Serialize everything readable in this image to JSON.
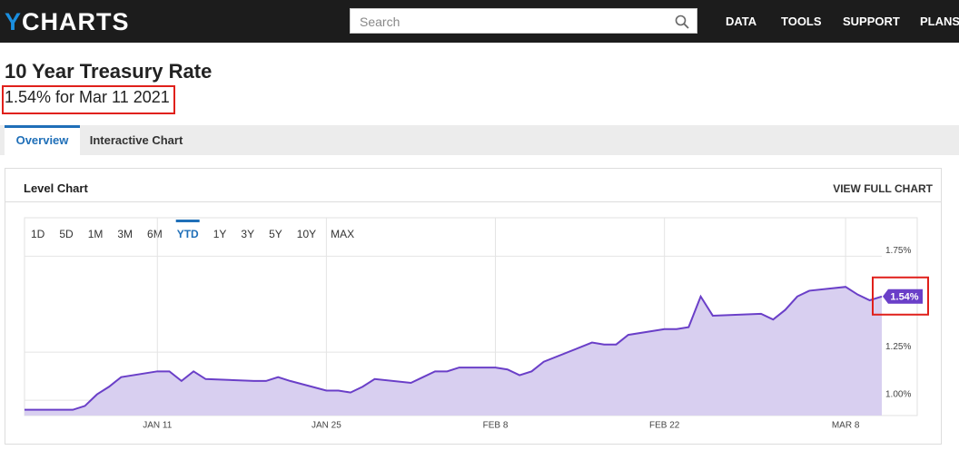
{
  "nav": {
    "logo_first": "Y",
    "logo_rest": "CHARTS",
    "search_placeholder": "Search",
    "links": [
      "DATA",
      "TOOLS",
      "SUPPORT",
      "PLANS"
    ]
  },
  "header": {
    "title": "10 Year Treasury Rate",
    "subtitle": "1.54% for Mar 11 2021"
  },
  "tabs": [
    "Overview",
    "Interactive Chart"
  ],
  "panel": {
    "title": "Level Chart",
    "link": "VIEW FULL CHART",
    "ranges": [
      "1D",
      "5D",
      "1M",
      "3M",
      "6M",
      "YTD",
      "1Y",
      "3Y",
      "5Y",
      "10Y",
      "MAX"
    ],
    "active_range": 5
  },
  "chart_data": {
    "type": "area",
    "x": [
      "Dec 31",
      "Jan 4",
      "Jan 5",
      "Jan 6",
      "Jan 7",
      "Jan 8",
      "Jan 11",
      "Jan 12",
      "Jan 13",
      "Jan 14",
      "Jan 15",
      "Jan 19",
      "Jan 20",
      "Jan 21",
      "Jan 22",
      "Jan 25",
      "Jan 26",
      "Jan 27",
      "Jan 28",
      "Jan 29",
      "Feb 1",
      "Feb 2",
      "Feb 3",
      "Feb 4",
      "Feb 5",
      "Feb 8",
      "Feb 9",
      "Feb 10",
      "Feb 11",
      "Feb 12",
      "Feb 16",
      "Feb 17",
      "Feb 18",
      "Feb 19",
      "Feb 22",
      "Feb 23",
      "Feb 24",
      "Feb 25",
      "Feb 26",
      "Mar 1",
      "Mar 2",
      "Mar 3",
      "Mar 4",
      "Mar 5",
      "Mar 8",
      "Mar 9",
      "Mar 10",
      "Mar 11"
    ],
    "values": [
      0.95,
      0.95,
      0.97,
      1.03,
      1.07,
      1.12,
      1.15,
      1.15,
      1.1,
      1.15,
      1.11,
      1.1,
      1.1,
      1.12,
      1.1,
      1.05,
      1.05,
      1.04,
      1.07,
      1.11,
      1.09,
      1.12,
      1.15,
      1.15,
      1.17,
      1.17,
      1.16,
      1.13,
      1.15,
      1.2,
      1.3,
      1.29,
      1.29,
      1.34,
      1.37,
      1.37,
      1.38,
      1.54,
      1.44,
      1.45,
      1.42,
      1.47,
      1.54,
      1.57,
      1.59,
      1.55,
      1.52,
      1.54
    ],
    "current_label": "1.54%",
    "color": "#6a3fc8",
    "fill": "#d8cff0",
    "xlim": [
      "Dec 31",
      "Mar 11"
    ],
    "xticks": [
      {
        "value": "Jan 11",
        "label": "JAN 11"
      },
      {
        "value": "Jan 25",
        "label": "JAN 25"
      },
      {
        "value": "Feb 8",
        "label": "FEB 8"
      },
      {
        "value": "Feb 22",
        "label": "FEB 22"
      },
      {
        "value": "Mar 8",
        "label": "MAR 8"
      }
    ],
    "ylim": [
      0.92,
      1.95
    ],
    "yticks": [
      {
        "value": 1.0,
        "label": "1.00%"
      },
      {
        "value": 1.25,
        "label": "1.25%"
      },
      {
        "value": 1.75,
        "label": "1.75%"
      }
    ],
    "grid": true
  }
}
